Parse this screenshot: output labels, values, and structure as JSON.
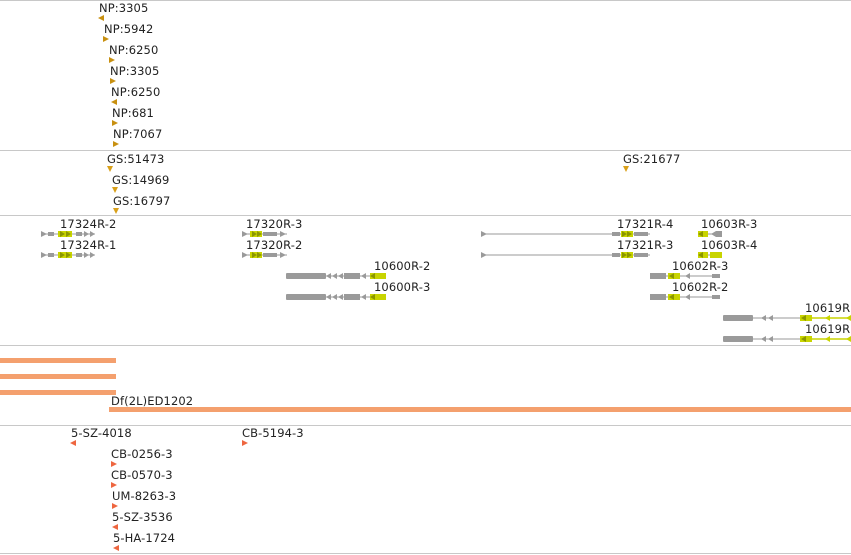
{
  "np_track": {
    "features": [
      {
        "label": "NP:3305",
        "dir": "l"
      },
      {
        "label": "NP:5942",
        "dir": "r"
      },
      {
        "label": "NP:6250",
        "dir": "r"
      },
      {
        "label": "NP:3305",
        "dir": "r"
      },
      {
        "label": "NP:6250",
        "dir": "l"
      },
      {
        "label": "NP:681",
        "dir": "r"
      },
      {
        "label": "NP:7067",
        "dir": "r"
      }
    ]
  },
  "gs_track": {
    "features": [
      {
        "label": "GS:51473"
      },
      {
        "label": "GS:14969"
      },
      {
        "label": "GS:16797"
      },
      {
        "label": "GS:21677"
      }
    ]
  },
  "gene_track": {
    "genes": [
      {
        "label": "17324R-2"
      },
      {
        "label": "17324R-1"
      },
      {
        "label": "17320R-3"
      },
      {
        "label": "17320R-2"
      },
      {
        "label": "10600R-2"
      },
      {
        "label": "10600R-3"
      },
      {
        "label": "17321R-4"
      },
      {
        "label": "17321R-3"
      },
      {
        "label": "10603R-3"
      },
      {
        "label": "10603R-4"
      },
      {
        "label": "10602R-3"
      },
      {
        "label": "10602R-2"
      },
      {
        "label": "10619R"
      },
      {
        "label": "10619R"
      }
    ],
    "colors": {
      "exon": "#9a9a9a",
      "cds": "#c8d400"
    }
  },
  "deficiency_track": {
    "label": "Df(2L)ED1202",
    "color": "#f4a06e"
  },
  "insertion_track": {
    "features": [
      {
        "label": "5-SZ-4018",
        "dir": "l"
      },
      {
        "label": "CB-5194-3",
        "dir": "r"
      },
      {
        "label": "CB-0256-3",
        "dir": "r"
      },
      {
        "label": "CB-0570-3",
        "dir": "r"
      },
      {
        "label": "UM-8263-3",
        "dir": "r"
      },
      {
        "label": "5-SZ-3536",
        "dir": "l"
      },
      {
        "label": "5-HA-1724",
        "dir": "l"
      }
    ]
  }
}
